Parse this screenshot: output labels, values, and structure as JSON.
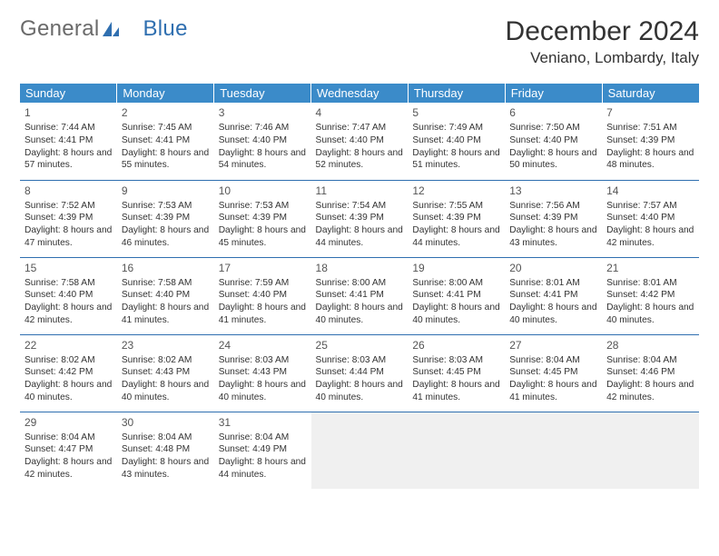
{
  "logo": {
    "word1": "General",
    "word2": "Blue"
  },
  "title": "December 2024",
  "location": "Veniano, Lombardy, Italy",
  "weekdays": [
    "Sunday",
    "Monday",
    "Tuesday",
    "Wednesday",
    "Thursday",
    "Friday",
    "Saturday"
  ],
  "header_bg": "#3b8bc9",
  "rule_color": "#2f6fb0",
  "days": [
    {
      "n": 1,
      "sr": "7:44 AM",
      "ss": "4:41 PM",
      "dl": "8 hours and 57 minutes."
    },
    {
      "n": 2,
      "sr": "7:45 AM",
      "ss": "4:41 PM",
      "dl": "8 hours and 55 minutes."
    },
    {
      "n": 3,
      "sr": "7:46 AM",
      "ss": "4:40 PM",
      "dl": "8 hours and 54 minutes."
    },
    {
      "n": 4,
      "sr": "7:47 AM",
      "ss": "4:40 PM",
      "dl": "8 hours and 52 minutes."
    },
    {
      "n": 5,
      "sr": "7:49 AM",
      "ss": "4:40 PM",
      "dl": "8 hours and 51 minutes."
    },
    {
      "n": 6,
      "sr": "7:50 AM",
      "ss": "4:40 PM",
      "dl": "8 hours and 50 minutes."
    },
    {
      "n": 7,
      "sr": "7:51 AM",
      "ss": "4:39 PM",
      "dl": "8 hours and 48 minutes."
    },
    {
      "n": 8,
      "sr": "7:52 AM",
      "ss": "4:39 PM",
      "dl": "8 hours and 47 minutes."
    },
    {
      "n": 9,
      "sr": "7:53 AM",
      "ss": "4:39 PM",
      "dl": "8 hours and 46 minutes."
    },
    {
      "n": 10,
      "sr": "7:53 AM",
      "ss": "4:39 PM",
      "dl": "8 hours and 45 minutes."
    },
    {
      "n": 11,
      "sr": "7:54 AM",
      "ss": "4:39 PM",
      "dl": "8 hours and 44 minutes."
    },
    {
      "n": 12,
      "sr": "7:55 AM",
      "ss": "4:39 PM",
      "dl": "8 hours and 44 minutes."
    },
    {
      "n": 13,
      "sr": "7:56 AM",
      "ss": "4:39 PM",
      "dl": "8 hours and 43 minutes."
    },
    {
      "n": 14,
      "sr": "7:57 AM",
      "ss": "4:40 PM",
      "dl": "8 hours and 42 minutes."
    },
    {
      "n": 15,
      "sr": "7:58 AM",
      "ss": "4:40 PM",
      "dl": "8 hours and 42 minutes."
    },
    {
      "n": 16,
      "sr": "7:58 AM",
      "ss": "4:40 PM",
      "dl": "8 hours and 41 minutes."
    },
    {
      "n": 17,
      "sr": "7:59 AM",
      "ss": "4:40 PM",
      "dl": "8 hours and 41 minutes."
    },
    {
      "n": 18,
      "sr": "8:00 AM",
      "ss": "4:41 PM",
      "dl": "8 hours and 40 minutes."
    },
    {
      "n": 19,
      "sr": "8:00 AM",
      "ss": "4:41 PM",
      "dl": "8 hours and 40 minutes."
    },
    {
      "n": 20,
      "sr": "8:01 AM",
      "ss": "4:41 PM",
      "dl": "8 hours and 40 minutes."
    },
    {
      "n": 21,
      "sr": "8:01 AM",
      "ss": "4:42 PM",
      "dl": "8 hours and 40 minutes."
    },
    {
      "n": 22,
      "sr": "8:02 AM",
      "ss": "4:42 PM",
      "dl": "8 hours and 40 minutes."
    },
    {
      "n": 23,
      "sr": "8:02 AM",
      "ss": "4:43 PM",
      "dl": "8 hours and 40 minutes."
    },
    {
      "n": 24,
      "sr": "8:03 AM",
      "ss": "4:43 PM",
      "dl": "8 hours and 40 minutes."
    },
    {
      "n": 25,
      "sr": "8:03 AM",
      "ss": "4:44 PM",
      "dl": "8 hours and 40 minutes."
    },
    {
      "n": 26,
      "sr": "8:03 AM",
      "ss": "4:45 PM",
      "dl": "8 hours and 41 minutes."
    },
    {
      "n": 27,
      "sr": "8:04 AM",
      "ss": "4:45 PM",
      "dl": "8 hours and 41 minutes."
    },
    {
      "n": 28,
      "sr": "8:04 AM",
      "ss": "4:46 PM",
      "dl": "8 hours and 42 minutes."
    },
    {
      "n": 29,
      "sr": "8:04 AM",
      "ss": "4:47 PM",
      "dl": "8 hours and 42 minutes."
    },
    {
      "n": 30,
      "sr": "8:04 AM",
      "ss": "4:48 PM",
      "dl": "8 hours and 43 minutes."
    },
    {
      "n": 31,
      "sr": "8:04 AM",
      "ss": "4:49 PM",
      "dl": "8 hours and 44 minutes."
    }
  ],
  "labels": {
    "sunrise": "Sunrise: ",
    "sunset": "Sunset: ",
    "daylight": "Daylight: "
  },
  "first_day_offset": 0,
  "trailing_blanks": 4
}
